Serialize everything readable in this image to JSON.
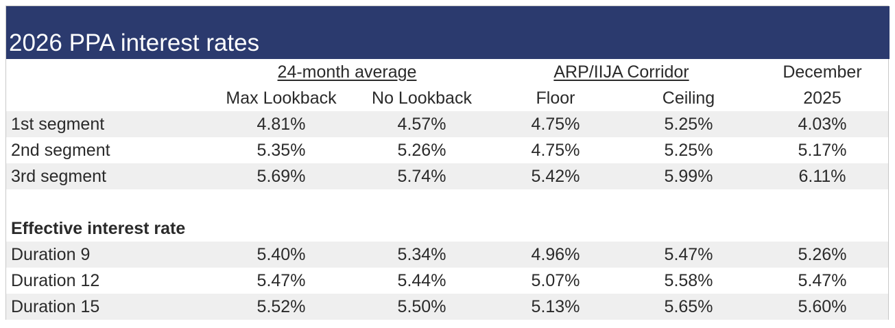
{
  "title": "2026 PPA interest rates",
  "header": {
    "groups": [
      "24-month average",
      "ARP/IIJA Corridor",
      "December"
    ],
    "columns": [
      "Max Lookback",
      "No Lookback",
      "Floor",
      "Ceiling",
      "2025"
    ]
  },
  "sections": [
    {
      "rows": [
        {
          "label": "1st segment",
          "values": [
            "4.81%",
            "4.57%",
            "4.75%",
            "5.25%",
            "4.03%"
          ]
        },
        {
          "label": "2nd segment",
          "values": [
            "5.35%",
            "5.26%",
            "4.75%",
            "5.25%",
            "5.17%"
          ]
        },
        {
          "label": "3rd segment",
          "values": [
            "5.69%",
            "5.74%",
            "5.42%",
            "5.99%",
            "6.11%"
          ]
        }
      ]
    },
    {
      "title": "Effective interest rate",
      "rows": [
        {
          "label": "Duration 9",
          "values": [
            "5.40%",
            "5.34%",
            "4.96%",
            "5.47%",
            "5.26%"
          ]
        },
        {
          "label": "Duration 12",
          "values": [
            "5.47%",
            "5.44%",
            "5.07%",
            "5.58%",
            "5.47%"
          ]
        },
        {
          "label": "Duration 15",
          "values": [
            "5.52%",
            "5.50%",
            "5.13%",
            "5.65%",
            "5.60%"
          ]
        }
      ]
    }
  ]
}
